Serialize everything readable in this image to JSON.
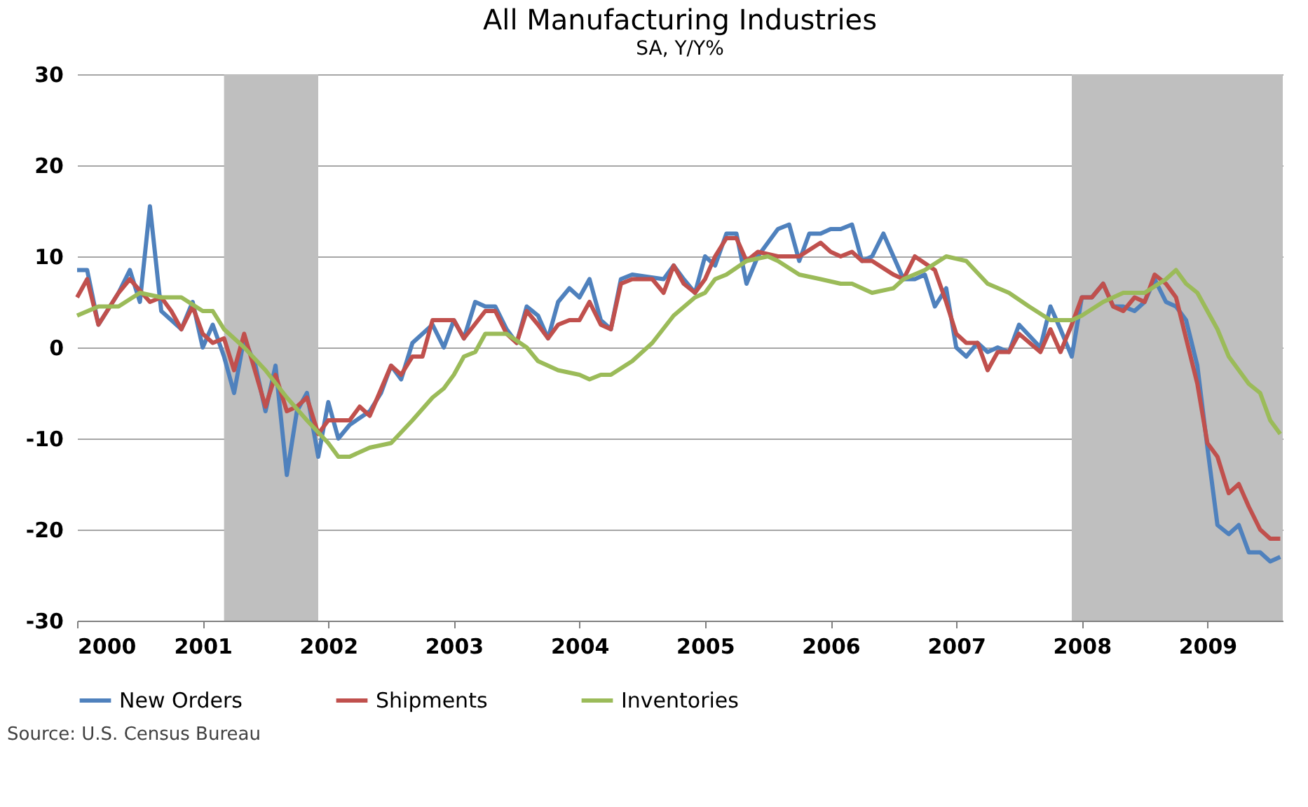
{
  "chart_data": {
    "type": "line",
    "title": "All Manufacturing Industries",
    "subtitle": "SA, Y/Y%",
    "annotations": [
      "Source: U.S. Census Bureau"
    ],
    "xlim": [
      2000,
      2009.6
    ],
    "xticks": [
      2000,
      2001,
      2002,
      2003,
      2004,
      2005,
      2006,
      2007,
      2008,
      2009
    ],
    "ylim": [
      -30,
      30
    ],
    "yticks": [
      -30,
      -20,
      -10,
      0,
      10,
      20,
      30
    ],
    "grid": "y",
    "legend": "bottom",
    "line_style": "solid",
    "bands": [
      {
        "axis": "x",
        "from": 2001.17,
        "to": 2001.92,
        "color": "#bfbfbf"
      },
      {
        "axis": "x",
        "from": 2007.92,
        "to": 2009.6,
        "color": "#bfbfbf"
      }
    ],
    "series": [
      {
        "name": "New Orders",
        "color": "#4f81bd",
        "x": [
          2000.0,
          2000.08,
          2000.17,
          2000.33,
          2000.42,
          2000.5,
          2000.58,
          2000.67,
          2000.83,
          2000.92,
          2001.0,
          2001.08,
          2001.17,
          2001.25,
          2001.33,
          2001.42,
          2001.5,
          2001.58,
          2001.67,
          2001.75,
          2001.83,
          2001.92,
          2002.0,
          2002.08,
          2002.17,
          2002.33,
          2002.42,
          2002.5,
          2002.58,
          2002.67,
          2002.83,
          2002.92,
          2003.0,
          2003.08,
          2003.17,
          2003.25,
          2003.33,
          2003.42,
          2003.5,
          2003.58,
          2003.67,
          2003.75,
          2003.83,
          2003.92,
          2004.0,
          2004.08,
          2004.17,
          2004.25,
          2004.33,
          2004.42,
          2004.67,
          2004.75,
          2004.83,
          2004.92,
          2005.0,
          2005.08,
          2005.17,
          2005.25,
          2005.33,
          2005.42,
          2005.58,
          2005.67,
          2005.75,
          2005.83,
          2005.92,
          2006.0,
          2006.08,
          2006.17,
          2006.25,
          2006.33,
          2006.42,
          2006.5,
          2006.58,
          2006.67,
          2006.75,
          2006.83,
          2006.92,
          2007.0,
          2007.08,
          2007.17,
          2007.25,
          2007.33,
          2007.42,
          2007.5,
          2007.67,
          2007.75,
          2007.83,
          2007.92,
          2008.0,
          2008.08,
          2008.17,
          2008.25,
          2008.33,
          2008.42,
          2008.5,
          2008.58,
          2008.67,
          2008.75,
          2008.83,
          2008.92,
          2009.0,
          2009.08,
          2009.17,
          2009.25,
          2009.33,
          2009.42,
          2009.5,
          2009.58
        ],
        "values": [
          8.5,
          8.5,
          2.5,
          6,
          8.5,
          5,
          15.5,
          4,
          2,
          5,
          0,
          2.5,
          -1,
          -5,
          1,
          -2,
          -7,
          -2,
          -14,
          -7,
          -5,
          -12,
          -6,
          -10,
          -8.5,
          -7,
          -5,
          -2,
          -3.5,
          0.5,
          2.5,
          0,
          3,
          1,
          5,
          4.5,
          4.5,
          2,
          0.5,
          4.5,
          3.5,
          1,
          5,
          6.5,
          5.5,
          7.5,
          3,
          2,
          7.5,
          8,
          7.5,
          9,
          7.5,
          6,
          10,
          9,
          12.5,
          12.5,
          7,
          10,
          13,
          13.5,
          9.5,
          12.5,
          12.5,
          13,
          13,
          13.5,
          9.5,
          10,
          12.5,
          10,
          7.5,
          7.5,
          8,
          4.5,
          6.5,
          0,
          -1,
          0.5,
          -0.5,
          0,
          -0.5,
          2.5,
          0,
          4.5,
          2,
          -1,
          5.5,
          5.5,
          7,
          4.5,
          4.5,
          4,
          5,
          7.5,
          5,
          4.5,
          3,
          -2,
          -11,
          -19.5,
          -20.5,
          -19.5,
          -22.5,
          -22.5,
          -23.5,
          -23
        ]
      },
      {
        "name": "Shipments",
        "color": "#c0504d",
        "x": [
          2000.0,
          2000.08,
          2000.17,
          2000.33,
          2000.42,
          2000.58,
          2000.67,
          2000.75,
          2000.83,
          2000.92,
          2001.0,
          2001.08,
          2001.17,
          2001.25,
          2001.33,
          2001.5,
          2001.58,
          2001.67,
          2001.75,
          2001.83,
          2001.92,
          2002.0,
          2002.08,
          2002.17,
          2002.25,
          2002.33,
          2002.5,
          2002.58,
          2002.67,
          2002.75,
          2002.83,
          2002.92,
          2003.0,
          2003.08,
          2003.25,
          2003.33,
          2003.42,
          2003.5,
          2003.58,
          2003.67,
          2003.75,
          2003.83,
          2003.92,
          2004.0,
          2004.08,
          2004.17,
          2004.25,
          2004.33,
          2004.42,
          2004.58,
          2004.67,
          2004.75,
          2004.83,
          2004.92,
          2005.0,
          2005.08,
          2005.17,
          2005.25,
          2005.33,
          2005.42,
          2005.58,
          2005.75,
          2005.92,
          2006.0,
          2006.08,
          2006.17,
          2006.25,
          2006.33,
          2006.5,
          2006.58,
          2006.67,
          2006.83,
          2006.92,
          2007.0,
          2007.08,
          2007.17,
          2007.25,
          2007.33,
          2007.42,
          2007.5,
          2007.67,
          2007.75,
          2007.83,
          2007.92,
          2008.0,
          2008.08,
          2008.17,
          2008.25,
          2008.33,
          2008.42,
          2008.5,
          2008.58,
          2008.67,
          2008.75,
          2008.83,
          2008.92,
          2009.0,
          2009.08,
          2009.17,
          2009.25,
          2009.33,
          2009.42,
          2009.5,
          2009.58
        ],
        "values": [
          5.5,
          7.5,
          2.5,
          6,
          7.5,
          5,
          5.5,
          4,
          2,
          4.5,
          1.5,
          0.5,
          1,
          -2.5,
          1.5,
          -6.5,
          -3,
          -7,
          -6.5,
          -5.5,
          -9.5,
          -8,
          -8,
          -8,
          -6.5,
          -7.5,
          -2,
          -3,
          -1,
          -1,
          3,
          3,
          3,
          1,
          4,
          4,
          1.5,
          0.5,
          4,
          2.5,
          1,
          2.5,
          3,
          3,
          5,
          2.5,
          2,
          7,
          7.5,
          7.5,
          6,
          9,
          7,
          6,
          7.5,
          10,
          12,
          12,
          9.5,
          10.5,
          10,
          10,
          11.5,
          10.5,
          10,
          10.5,
          9.5,
          9.5,
          8,
          7.5,
          10,
          8.5,
          5,
          1.5,
          0.5,
          0.5,
          -2.5,
          -0.5,
          -0.5,
          1.5,
          -0.5,
          2,
          -0.5,
          2.5,
          5.5,
          5.5,
          7,
          4.5,
          4,
          5.5,
          5,
          8,
          7,
          5.5,
          1,
          -4,
          -10.5,
          -12,
          -16,
          -15,
          -17.5,
          -20,
          -21,
          -21
        ]
      },
      {
        "name": "Inventories",
        "color": "#9bbb59",
        "x": [
          2000.0,
          2000.17,
          2000.33,
          2000.5,
          2000.67,
          2000.83,
          2001.0,
          2001.08,
          2001.17,
          2001.33,
          2001.5,
          2001.67,
          2001.83,
          2002.0,
          2002.08,
          2002.17,
          2002.33,
          2002.5,
          2002.67,
          2002.83,
          2002.92,
          2003.0,
          2003.08,
          2003.17,
          2003.25,
          2003.42,
          2003.58,
          2003.67,
          2003.83,
          2004.0,
          2004.08,
          2004.17,
          2004.25,
          2004.42,
          2004.58,
          2004.75,
          2004.92,
          2005.0,
          2005.08,
          2005.17,
          2005.33,
          2005.5,
          2005.58,
          2005.75,
          2005.92,
          2006.08,
          2006.17,
          2006.33,
          2006.5,
          2006.58,
          2006.75,
          2006.92,
          2007.08,
          2007.25,
          2007.42,
          2007.58,
          2007.75,
          2007.92,
          2008.0,
          2008.17,
          2008.33,
          2008.5,
          2008.67,
          2008.75,
          2008.83,
          2008.92,
          2009.08,
          2009.17,
          2009.33,
          2009.42,
          2009.5,
          2009.58
        ],
        "values": [
          3.5,
          4.5,
          4.5,
          6,
          5.5,
          5.5,
          4,
          4,
          2,
          0,
          -2.5,
          -5.5,
          -8,
          -10.5,
          -12,
          -12,
          -11,
          -10.5,
          -8,
          -5.5,
          -4.5,
          -3,
          -1,
          -0.5,
          1.5,
          1.5,
          0,
          -1.5,
          -2.5,
          -3,
          -3.5,
          -3,
          -3,
          -1.5,
          0.5,
          3.5,
          5.5,
          6,
          7.5,
          8,
          9.5,
          10,
          9.5,
          8,
          7.5,
          7,
          7,
          6,
          6.5,
          7.5,
          8.5,
          10,
          9.5,
          7,
          6,
          4.5,
          3,
          3,
          3.5,
          5,
          6,
          6,
          7.5,
          8.5,
          7,
          6,
          2,
          -1,
          -4,
          -5,
          -8,
          -9.5
        ]
      }
    ]
  }
}
